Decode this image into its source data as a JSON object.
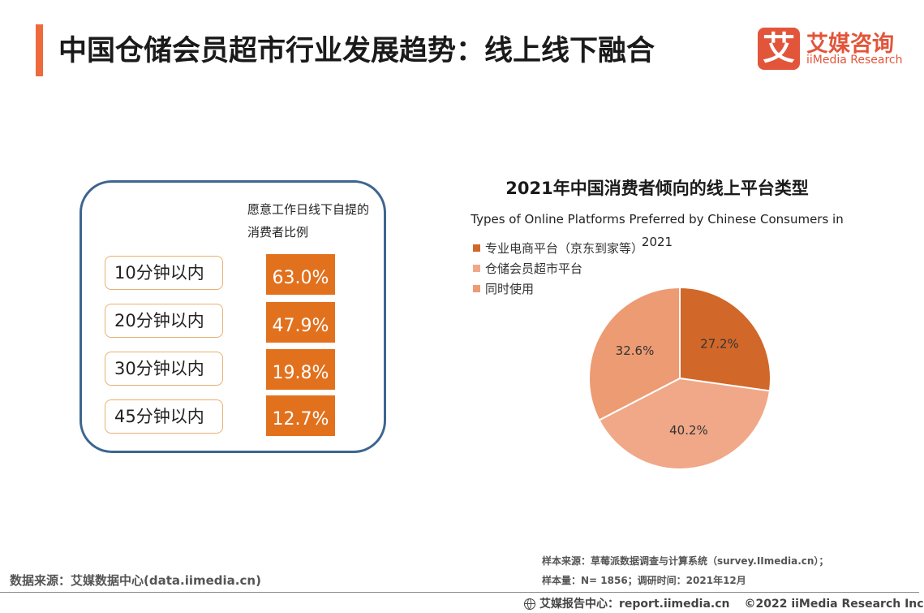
{
  "header": {
    "title": "中国仓储会员超市行业发展趋势：线上线下融合",
    "logo_mark": "艾",
    "logo_cn": "艾媒咨询",
    "logo_en": "iiMedia Research"
  },
  "offline_panel": {
    "column_header": "愿意工作日线下自提的消费者比例",
    "rows": [
      {
        "label": "10分钟以内",
        "value": "63.0%"
      },
      {
        "label": "20分钟以内",
        "value": "47.9%"
      },
      {
        "label": "30分钟以内",
        "value": "19.8%"
      },
      {
        "label": "45分钟以内",
        "value": "12.7%"
      }
    ]
  },
  "chart_data": {
    "type": "pie",
    "title": "2021年中国消费者倾向的线上平台类型",
    "subtitle": "Types of Online Platforms Preferred by Chinese Consumers in 2021",
    "legend_position": "top-left",
    "series": [
      {
        "name": "专业电商平台（京东到家等）",
        "value": 27.2,
        "label": "27.2%",
        "color": "#d2672a"
      },
      {
        "name": "仓储会员超市平台",
        "value": 40.2,
        "label": "40.2%",
        "color": "#f0a888"
      },
      {
        "name": "同时使用",
        "value": 32.6,
        "label": "32.6%",
        "color": "#ed9b73"
      }
    ]
  },
  "footer": {
    "data_source": "数据来源：艾媒数据中心(data.iimedia.cn)",
    "sample_source": "样本来源：草莓派数据调查与计算系统（survey.IImedia.cn）；",
    "sample_size": "样本量：N= 1856；调研时间：2021年12月",
    "report_center": "艾媒报告中心：report.iimedia.cn",
    "copyright": "©2022  iiMedia Research  Inc"
  }
}
